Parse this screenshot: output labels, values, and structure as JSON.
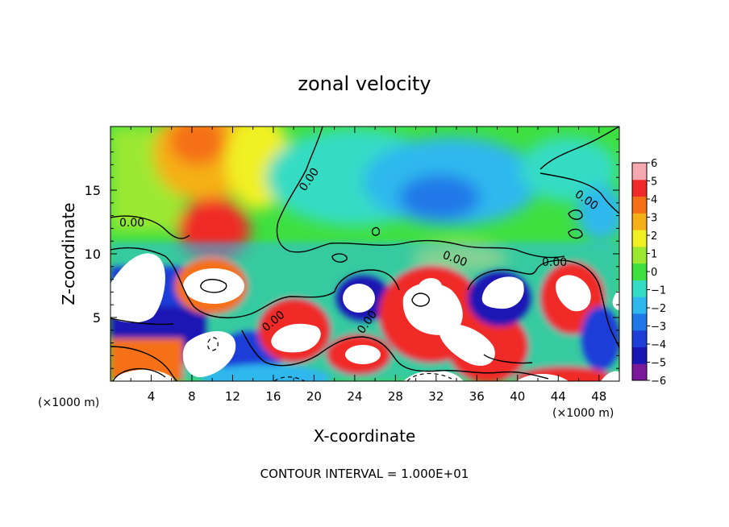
{
  "chart_data": {
    "type": "heatmap",
    "title": "zonal velocity",
    "xlabel": "X-coordinate",
    "ylabel": "Z-coordinate",
    "x_units": "(×1000 m)",
    "y_units": "(×1000 m)",
    "footer": "CONTOUR INTERVAL = 1.000E+01",
    "xlim": [
      0,
      50
    ],
    "ylim": [
      0,
      20
    ],
    "x_ticks": [
      "4",
      "8",
      "12",
      "16",
      "20",
      "24",
      "28",
      "32",
      "36",
      "40",
      "44",
      "48"
    ],
    "y_ticks": [
      "5",
      "10",
      "15"
    ],
    "colorbar": {
      "ticks": [
        "6",
        "5",
        "4",
        "3",
        "2",
        "1",
        "0",
        "−1",
        "−2",
        "−3",
        "−4",
        "−5",
        "−6"
      ],
      "min": -6,
      "max": 6,
      "colors": [
        "#7a1a9a",
        "#1a16b4",
        "#1e3ed8",
        "#2078e8",
        "#2fb8ee",
        "#35dcc4",
        "#3ee040",
        "#9be830",
        "#f0f022",
        "#f5b018",
        "#f56f16",
        "#f02a28",
        "#f5a8b0"
      ]
    },
    "contour_labels": [
      "0.00",
      "0.00",
      "0.00",
      "0.00",
      "0.00",
      "0.00",
      "0.00"
    ],
    "features": [
      {
        "x": 2.5,
        "z": 6.5,
        "value": "max",
        "color": "white"
      },
      {
        "x": 10.5,
        "z": 7.5,
        "value": "max",
        "color": "white"
      },
      {
        "x": 18.5,
        "z": 3.5,
        "value": "max",
        "color": "white"
      },
      {
        "x": 25.5,
        "z": 6.5,
        "value": "min",
        "color": "white"
      },
      {
        "x": 31,
        "z": 6.5,
        "value": "max",
        "color": "white"
      },
      {
        "x": 38.5,
        "z": 7.0,
        "value": "min",
        "color": "white"
      },
      {
        "x": 45,
        "z": 7.0,
        "value": "max",
        "color": "white"
      },
      {
        "x": 10.5,
        "z": 2.0,
        "value": "max",
        "color": "white"
      },
      {
        "x": 25,
        "z": 2.0,
        "value": "max",
        "color": "white"
      }
    ]
  }
}
